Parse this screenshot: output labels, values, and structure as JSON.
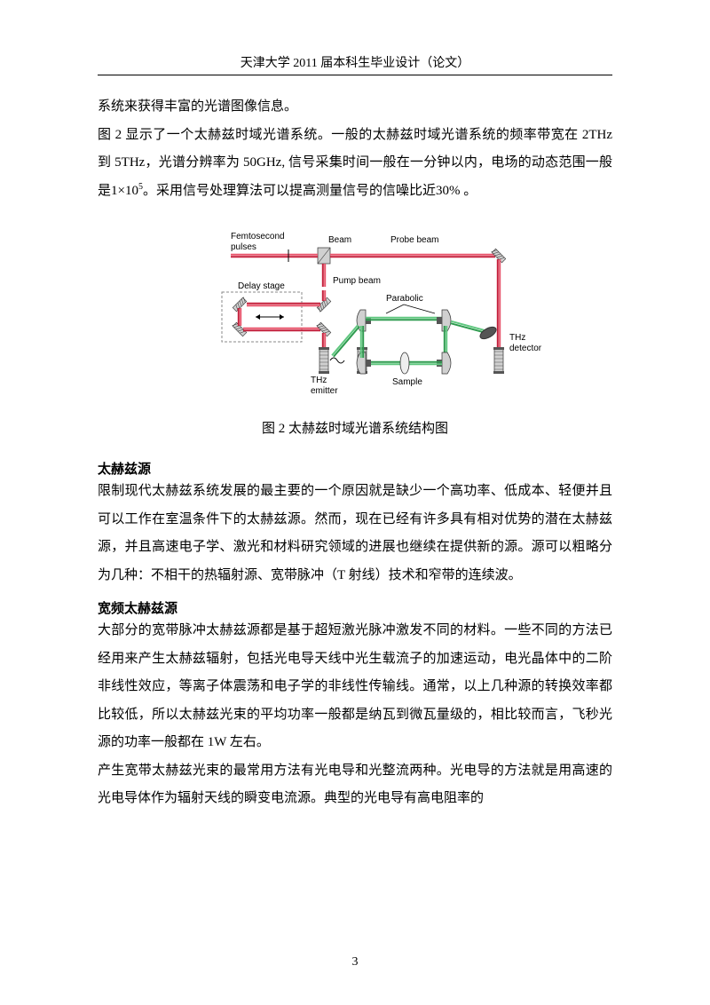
{
  "header": "天津大学 2011 届本科生毕业设计（论文）",
  "para1": "系统来获得丰富的光谱图像信息。",
  "para2_a": "图 2 显示了一个太赫兹时域光谱系统。一般的太赫兹时域光谱系统的频率带宽在 2THz 到 5THz，光谱分辨率为 50GHz, 信号采集时间一般在一分钟以内，电场的动态范围一般是",
  "para2_exp_base": "1×10",
  "para2_exp_sup": "5",
  "para2_b": "。采用信号处理算法可以提高测量信号的信噪比近30% 。",
  "figure": {
    "caption": "图 2  太赫兹时域光谱系统结构图",
    "labels": {
      "femto": "Femtosecond",
      "pulses": "pulses",
      "beam": "Beam",
      "probe": "Probe beam",
      "delay": "Delay stage",
      "pump": "Pump beam",
      "parabolic": "Parabolic",
      "thz_emit1": "THz",
      "thz_emit2": "emitter",
      "sample": "Sample",
      "thz_det1": "THz",
      "thz_det2": "detector"
    },
    "colors": {
      "red_beam": "#c41e3a",
      "red_beam_light": "#e8546b",
      "green_beam": "#2e9b4f",
      "green_beam_light": "#5fc77f",
      "mirror_fill": "#d0d0d0",
      "mirror_stroke": "#333333",
      "box_stroke": "#888888",
      "text_color": "#000000",
      "dark_gray": "#555555"
    }
  },
  "section1_title": "太赫兹源",
  "section1_body": "限制现代太赫兹系统发展的最主要的一个原因就是缺少一个高功率、低成本、轻便并且可以工作在室温条件下的太赫兹源。然而，现在已经有许多具有相对优势的潜在太赫兹源，并且高速电子学、激光和材料研究领域的进展也继续在提供新的源。源可以粗略分为几种：不相干的热辐射源、宽带脉冲（T 射线）技术和窄带的连续波。",
  "section2_title": "宽频太赫兹源",
  "section2_body": "大部分的宽带脉冲太赫兹源都是基于超短激光脉冲激发不同的材料。一些不同的方法已经用来产生太赫兹辐射，包括光电导天线中光生载流子的加速运动，电光晶体中的二阶非线性效应，等离子体震荡和电子学的非线性传输线。通常，以上几种源的转换效率都比较低，所以太赫兹光束的平均功率一般都是纳瓦到微瓦量级的，相比较而言，飞秒光源的功率一般都在 1W 左右。",
  "section2_body2": "产生宽带太赫兹光束的最常用方法有光电导和光整流两种。光电导的方法就是用高速的光电导体作为辐射天线的瞬变电流源。典型的光电导有高电阻率的",
  "page_number": "3"
}
